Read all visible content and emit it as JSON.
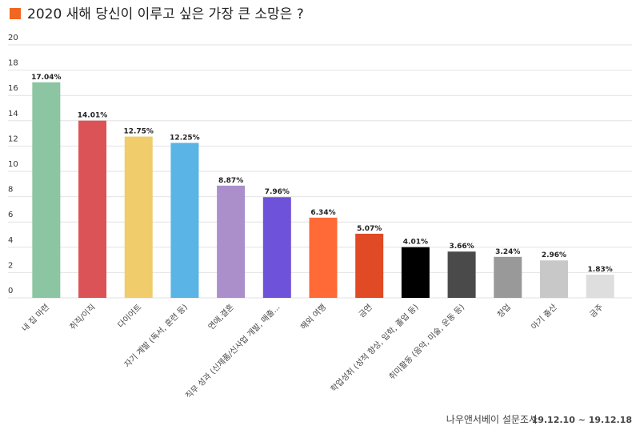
{
  "chart_data": {
    "type": "bar",
    "title": "2020 새해 당신이 이루고 싶은 가장 큰 소망은 ?",
    "title_marker_color": "#f26522",
    "categories": [
      "내 집 마련",
      "취직/이직",
      "다이어트",
      "자기 계발 (독서, 훈련 등)",
      "연애,결혼",
      "직무 성과 (신제품/신사업 개발, 매출...",
      "해외 여행",
      "금연",
      "학업성취 (성적 향상, 입학, 졸업 등)",
      "취미활동 (음악, 미술, 운동 등)",
      "창업",
      "아기 출산",
      "금주"
    ],
    "values": [
      17.04,
      14.01,
      12.75,
      12.25,
      8.87,
      7.96,
      6.34,
      5.07,
      4.01,
      3.66,
      3.24,
      2.96,
      1.83
    ],
    "value_labels": [
      "17.04%",
      "14.01%",
      "12.75%",
      "12.25%",
      "8.87%",
      "7.96%",
      "6.34%",
      "5.07%",
      "4.01%",
      "3.66%",
      "3.24%",
      "2.96%",
      "1.83%"
    ],
    "colors": [
      "#8cc5a2",
      "#dc5357",
      "#f0cc6b",
      "#5ab4e6",
      "#ab8fcb",
      "#6e52d9",
      "#ff6a36",
      "#e04a24",
      "#000000",
      "#4a4a4a",
      "#999999",
      "#c8c8c8",
      "#dedede"
    ],
    "ylim": [
      0,
      20
    ],
    "yticks": [
      0,
      2,
      4,
      6,
      8,
      10,
      12,
      14,
      16,
      18,
      20
    ],
    "grid": true,
    "source": "나우앤서베이 설문조사",
    "date_range": "19.12.10 ~ 19.12.18"
  }
}
